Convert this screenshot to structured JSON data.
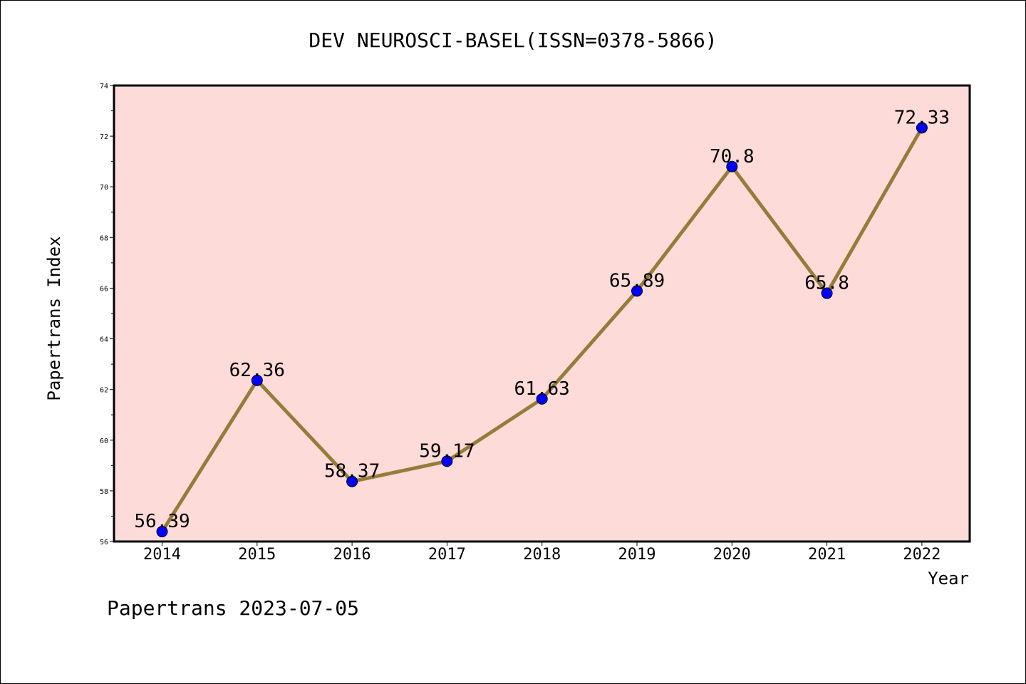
{
  "chart_data": {
    "type": "line",
    "title": "DEV NEUROSCI-BASEL(ISSN=0378-5866)",
    "xlabel": "Year",
    "ylabel": "Papertrans Index",
    "categories": [
      "2014",
      "2015",
      "2016",
      "2017",
      "2018",
      "2019",
      "2020",
      "2021",
      "2022"
    ],
    "series": [
      {
        "values": [
          56.39,
          62.36,
          58.37,
          59.17,
          61.63,
          65.89,
          70.8,
          65.8,
          72.33
        ],
        "labels": [
          "56.39",
          "62.36",
          "58.37",
          "59.17",
          "61.63",
          "65.89",
          "70.8",
          "65.8",
          "72.33"
        ]
      }
    ],
    "ylim": [
      56,
      74
    ],
    "yticks": [
      "56",
      "58",
      "60",
      "62",
      "64",
      "66",
      "68",
      "70",
      "72",
      "74"
    ],
    "grid": false,
    "colors": {
      "background": "#fddbd8",
      "line": "#947c3a",
      "marker": "#0000ff"
    }
  },
  "footer": "Papertrans 2023-07-05"
}
